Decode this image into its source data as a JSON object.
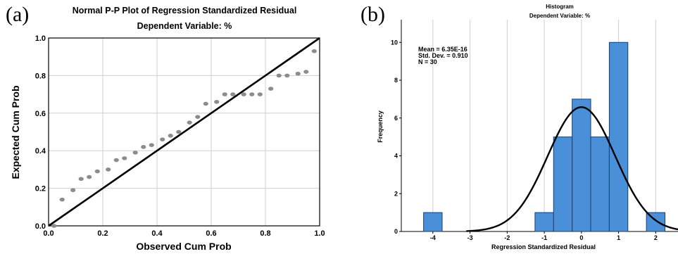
{
  "chart_data": [
    {
      "type": "scatter",
      "panel_label": "(a)",
      "title": "Normal P-P Plot of Regression Standardized Residual",
      "subtitle": "Dependent Variable: %",
      "xlabel": "Observed Cum Prob",
      "ylabel": "Expected Cum Prob",
      "xlim": [
        0,
        1
      ],
      "ylim": [
        0,
        1
      ],
      "x_ticks": [
        "0.0",
        "0.2",
        "0.4",
        "0.6",
        "0.8",
        "1.0"
      ],
      "y_ticks": [
        "0.0",
        "0.2",
        "0.4",
        "0.6",
        "0.8",
        "1.0"
      ],
      "grid": true,
      "reference_line": {
        "from": [
          0,
          0
        ],
        "to": [
          1,
          1
        ]
      },
      "points": [
        {
          "x": 0.02,
          "y": 0.0
        },
        {
          "x": 0.05,
          "y": 0.14
        },
        {
          "x": 0.09,
          "y": 0.19
        },
        {
          "x": 0.12,
          "y": 0.25
        },
        {
          "x": 0.15,
          "y": 0.26
        },
        {
          "x": 0.18,
          "y": 0.29
        },
        {
          "x": 0.22,
          "y": 0.3
        },
        {
          "x": 0.25,
          "y": 0.35
        },
        {
          "x": 0.28,
          "y": 0.36
        },
        {
          "x": 0.32,
          "y": 0.39
        },
        {
          "x": 0.35,
          "y": 0.42
        },
        {
          "x": 0.38,
          "y": 0.43
        },
        {
          "x": 0.42,
          "y": 0.46
        },
        {
          "x": 0.45,
          "y": 0.48
        },
        {
          "x": 0.48,
          "y": 0.5
        },
        {
          "x": 0.52,
          "y": 0.55
        },
        {
          "x": 0.55,
          "y": 0.58
        },
        {
          "x": 0.58,
          "y": 0.65
        },
        {
          "x": 0.62,
          "y": 0.66
        },
        {
          "x": 0.65,
          "y": 0.7
        },
        {
          "x": 0.68,
          "y": 0.7
        },
        {
          "x": 0.72,
          "y": 0.7
        },
        {
          "x": 0.75,
          "y": 0.7
        },
        {
          "x": 0.78,
          "y": 0.7
        },
        {
          "x": 0.82,
          "y": 0.73
        },
        {
          "x": 0.85,
          "y": 0.8
        },
        {
          "x": 0.88,
          "y": 0.8
        },
        {
          "x": 0.92,
          "y": 0.81
        },
        {
          "x": 0.95,
          "y": 0.82
        },
        {
          "x": 0.98,
          "y": 0.93
        }
      ],
      "colors": {
        "points": "#8c8c8c",
        "grid": "#cfcfcf",
        "line": "#000000"
      }
    },
    {
      "type": "bar",
      "panel_label": "(b)",
      "title": "Histogram",
      "subtitle": "Dependent Variable: %",
      "xlabel": "Regression Standardized Residual",
      "ylabel": "Frequency",
      "xlim": [
        -4.85,
        2.6
      ],
      "ylim": [
        0,
        11.2
      ],
      "x_ticks": [
        "-4",
        "-3",
        "-2",
        "-1",
        "0",
        "1",
        "2"
      ],
      "y_ticks": [
        "0",
        "2",
        "4",
        "6",
        "8",
        "10"
      ],
      "grid": true,
      "stats": [
        "Mean = 6.35E-16",
        "Std. Dev. = 0.910",
        "N = 30"
      ],
      "normal_curve": {
        "mean": 0,
        "sd": 0.91,
        "n": 30,
        "bin_width": 0.5
      },
      "bins": [
        {
          "from": -4.25,
          "to": -3.75,
          "count": 1
        },
        {
          "from": -1.25,
          "to": -0.75,
          "count": 1
        },
        {
          "from": -0.75,
          "to": -0.25,
          "count": 5
        },
        {
          "from": -0.25,
          "to": 0.25,
          "count": 7
        },
        {
          "from": 0.25,
          "to": 0.75,
          "count": 5
        },
        {
          "from": 0.75,
          "to": 1.25,
          "count": 10
        },
        {
          "from": 1.75,
          "to": 2.25,
          "count": 1
        }
      ],
      "colors": {
        "bars": "#4a90d9",
        "bar_edge": "#1a3e6e",
        "grid": "#cfcfcf",
        "curve": "#000000"
      }
    }
  ]
}
